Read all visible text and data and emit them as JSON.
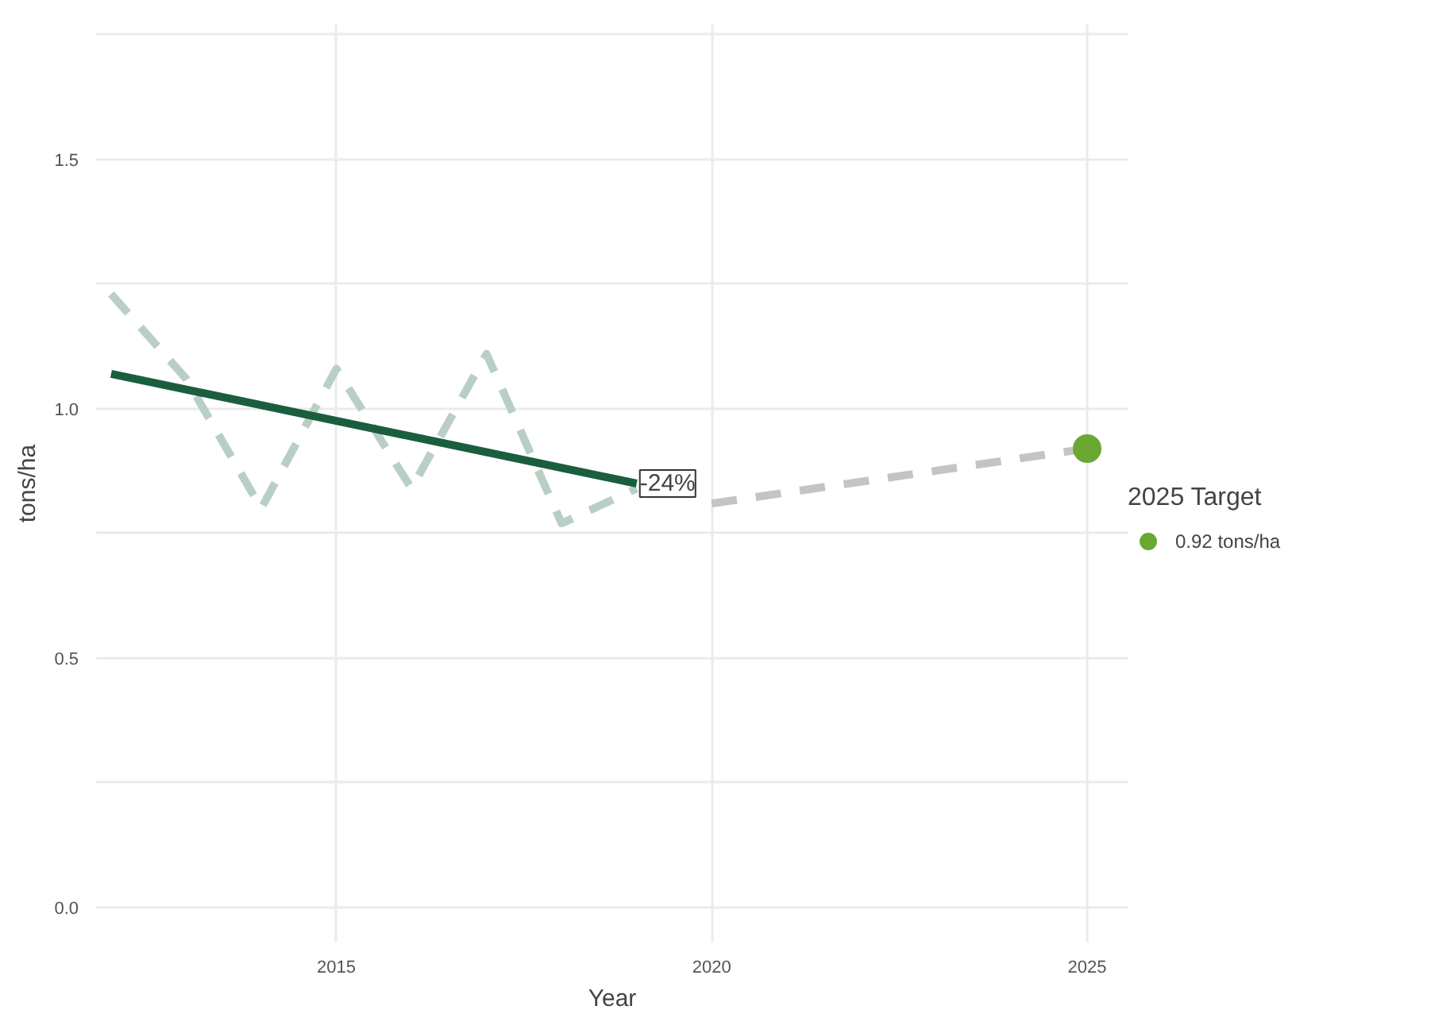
{
  "chart_data": {
    "type": "line",
    "xlabel": "Year",
    "ylabel": "tons/ha",
    "legend_title": "2025 Target",
    "series": [
      {
        "color": "#b9cfc5",
        "line_style": "dashed",
        "x": [
          2012,
          2013,
          2014,
          2015,
          2016,
          2017,
          2018,
          2019
        ],
        "values": [
          1.23,
          1.06,
          0.8,
          1.08,
          0.84,
          1.11,
          0.77,
          0.84
        ]
      },
      {
        "color": "#c4c4c4",
        "line_style": "dashed",
        "x": [
          2020,
          2025
        ],
        "values": [
          0.81,
          0.92
        ]
      },
      {
        "color": "#1a5e3f",
        "line_style": "solid",
        "x": [
          2012,
          2019
        ],
        "values": [
          1.07,
          0.85
        ]
      },
      {
        "type": "scatter",
        "name": "0.92 tons/ha",
        "color": "#6aa832",
        "marker": "circle",
        "x": [
          2025
        ],
        "values": [
          0.92
        ]
      }
    ],
    "annotations": [
      {
        "text": "-24%",
        "x": 2019,
        "y": 0.85
      }
    ],
    "xlim": [
      2011.8,
      2025.55
    ],
    "xticks": [
      2015,
      2020,
      2025
    ],
    "ylim": [
      -0.07,
      1.77
    ],
    "yticks": [
      {
        "value": 0,
        "label": "0.0"
      },
      {
        "value": 0.25,
        "label": null
      },
      0.5,
      {
        "value": 0.75,
        "label": null
      },
      {
        "value": 1,
        "label": "1.0"
      },
      {
        "value": 1.25,
        "label": null
      },
      1.5,
      {
        "value": 1.75,
        "label": null
      }
    ],
    "grid": true,
    "legend": "right"
  }
}
